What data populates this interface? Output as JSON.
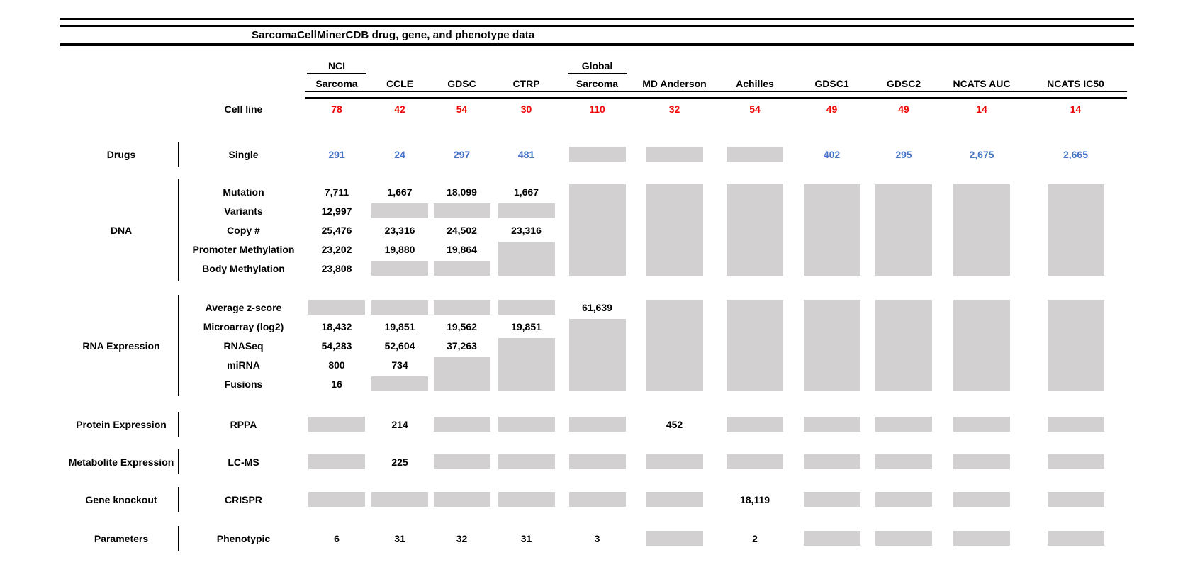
{
  "title": "SarcomaCellMinerCDB drug, gene, and phenotype data",
  "colors": {
    "red": "#f00505",
    "blue": "#4472c4",
    "gray_box": "#d2d0d0"
  },
  "header": {
    "cell_line_label": "Cell line",
    "columns": [
      {
        "top": "NCI",
        "name": "Sarcoma",
        "cell_lines": "78"
      },
      {
        "top": "",
        "name": "CCLE",
        "cell_lines": "42"
      },
      {
        "top": "",
        "name": "GDSC",
        "cell_lines": "54"
      },
      {
        "top": "",
        "name": "CTRP",
        "cell_lines": "30"
      },
      {
        "top": "Global",
        "name": "Sarcoma",
        "cell_lines": "110"
      },
      {
        "top": "",
        "name": "MD Anderson",
        "cell_lines": "32"
      },
      {
        "top": "",
        "name": "Achilles",
        "cell_lines": "54"
      },
      {
        "top": "",
        "name": "GDSC1",
        "cell_lines": "49"
      },
      {
        "top": "",
        "name": "GDSC2",
        "cell_lines": "49"
      },
      {
        "top": "",
        "name": "NCATS AUC",
        "cell_lines": "14"
      },
      {
        "top": "",
        "name": "NCATS IC50",
        "cell_lines": "14"
      }
    ]
  },
  "sections": [
    {
      "group": "Drugs",
      "rows": [
        {
          "label": "Single",
          "cells": [
            {
              "t": "291",
              "c": "blue"
            },
            {
              "t": "24",
              "c": "blue"
            },
            {
              "t": "297",
              "c": "blue"
            },
            {
              "t": "481",
              "c": "blue"
            },
            {
              "g": 1
            },
            {
              "g": 1
            },
            {
              "g": 1
            },
            {
              "t": "402",
              "c": "blue"
            },
            {
              "t": "295",
              "c": "blue"
            },
            {
              "t": "2,675",
              "c": "blue"
            },
            {
              "t": "2,665",
              "c": "blue"
            }
          ]
        }
      ]
    },
    {
      "group": "DNA",
      "rows": [
        {
          "label": "Mutation",
          "cells": [
            {
              "t": "7,711"
            },
            {
              "t": "1,667"
            },
            {
              "t": "18,099"
            },
            {
              "t": "1,667"
            },
            {
              "g": 5
            },
            {
              "g": 5
            },
            {
              "g": 5
            },
            {
              "g": 5
            },
            {
              "g": 5
            },
            {
              "g": 5
            },
            {
              "g": 5
            }
          ]
        },
        {
          "label": "Variants",
          "cells": [
            {
              "t": "12,997"
            },
            {
              "g": 1
            },
            {
              "g": 1
            },
            {
              "g": 1
            },
            null,
            null,
            null,
            null,
            null,
            null,
            null
          ]
        },
        {
          "label": "Copy #",
          "cells": [
            {
              "t": "25,476"
            },
            {
              "t": "23,316"
            },
            {
              "t": "24,502"
            },
            {
              "t": "23,316"
            },
            null,
            null,
            null,
            null,
            null,
            null,
            null
          ]
        },
        {
          "label": "Promoter Methylation",
          "cells": [
            {
              "t": "23,202"
            },
            {
              "t": "19,880"
            },
            {
              "t": "19,864"
            },
            {
              "g": 2
            },
            null,
            null,
            null,
            null,
            null,
            null,
            null
          ]
        },
        {
          "label": "Body Methylation",
          "cells": [
            {
              "t": "23,808"
            },
            {
              "g": 1
            },
            {
              "g": 1
            },
            null,
            null,
            null,
            null,
            null,
            null,
            null,
            null
          ]
        }
      ]
    },
    {
      "group": "RNA Expression",
      "rows": [
        {
          "label": "Average z-score",
          "cells": [
            {
              "g": 1
            },
            {
              "g": 1
            },
            {
              "g": 1
            },
            {
              "g": 1
            },
            {
              "t": "61,639"
            },
            {
              "g": 5
            },
            {
              "g": 5
            },
            {
              "g": 5
            },
            {
              "g": 5
            },
            {
              "g": 5
            },
            {
              "g": 5
            }
          ]
        },
        {
          "label": "Microarray (log2)",
          "cells": [
            {
              "t": "18,432"
            },
            {
              "t": "19,851"
            },
            {
              "t": "19,562"
            },
            {
              "t": "19,851"
            },
            {
              "g": 4
            },
            null,
            null,
            null,
            null,
            null,
            null
          ]
        },
        {
          "label": "RNASeq",
          "cells": [
            {
              "t": "54,283"
            },
            {
              "t": "52,604"
            },
            {
              "t": "37,263"
            },
            {
              "g": 3
            },
            null,
            null,
            null,
            null,
            null,
            null,
            null
          ]
        },
        {
          "label": "miRNA",
          "cells": [
            {
              "t": "800"
            },
            {
              "t": "734"
            },
            {
              "g": 2
            },
            null,
            null,
            null,
            null,
            null,
            null,
            null,
            null
          ]
        },
        {
          "label": "Fusions",
          "cells": [
            {
              "t": "16"
            },
            {
              "g": 1
            },
            null,
            null,
            null,
            null,
            null,
            null,
            null,
            null,
            null
          ]
        }
      ]
    },
    {
      "group": "Protein Expression",
      "rows": [
        {
          "label": "RPPA",
          "cells": [
            {
              "g": 1
            },
            {
              "t": "214"
            },
            {
              "g": 1
            },
            {
              "g": 1
            },
            {
              "g": 1
            },
            {
              "t": "452"
            },
            {
              "g": 1
            },
            {
              "g": 1
            },
            {
              "g": 1
            },
            {
              "g": 1
            },
            {
              "g": 1
            }
          ]
        }
      ]
    },
    {
      "group": "Metabolite Expression",
      "rows": [
        {
          "label": "LC-MS",
          "cells": [
            {
              "g": 1
            },
            {
              "t": "225"
            },
            {
              "g": 1
            },
            {
              "g": 1
            },
            {
              "g": 1
            },
            {
              "g": 1
            },
            {
              "g": 1
            },
            {
              "g": 1
            },
            {
              "g": 1
            },
            {
              "g": 1
            },
            {
              "g": 1
            }
          ]
        }
      ]
    },
    {
      "group": "Gene knockout",
      "rows": [
        {
          "label": "CRISPR",
          "cells": [
            {
              "g": 1
            },
            {
              "g": 1
            },
            {
              "g": 1
            },
            {
              "g": 1
            },
            {
              "g": 1
            },
            {
              "g": 1
            },
            {
              "t": "18,119"
            },
            {
              "g": 1
            },
            {
              "g": 1
            },
            {
              "g": 1
            },
            {
              "g": 1
            }
          ]
        }
      ]
    },
    {
      "group": "Parameters",
      "rows": [
        {
          "label": "Phenotypic",
          "cells": [
            {
              "t": "6"
            },
            {
              "t": "31"
            },
            {
              "t": "32"
            },
            {
              "t": "31"
            },
            {
              "t": "3"
            },
            {
              "g": 1
            },
            {
              "t": "2"
            },
            {
              "g": 1
            },
            {
              "g": 1
            },
            {
              "g": 1
            },
            {
              "g": 1
            }
          ]
        }
      ]
    }
  ]
}
